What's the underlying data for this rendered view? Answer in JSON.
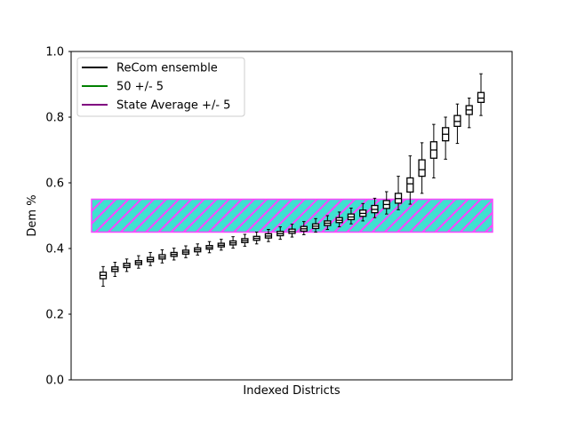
{
  "chart_data": {
    "type": "box",
    "xlabel": "Indexed Districts",
    "ylabel": "Dem %",
    "ylim": [
      0.0,
      1.0
    ],
    "yticks": [
      "0.0",
      "0.2",
      "0.4",
      "0.6",
      "0.8",
      "1.0"
    ],
    "grid": false,
    "legend": {
      "placement": "top-left",
      "entries": [
        {
          "label": "ReCom ensemble",
          "color": "#000000"
        },
        {
          "label": "50 +/- 5",
          "color": "#008000"
        },
        {
          "label": "State Average +/- 5",
          "color": "#800080"
        }
      ]
    },
    "band": {
      "ymin": 0.45,
      "ymax": 0.55,
      "edge_color": "#ff44ff",
      "fill_color": "#40e0d0",
      "hatch": "diagonal"
    },
    "series": [
      {
        "name": "ReCom ensemble",
        "color": "#000000",
        "boxes": [
          {
            "whislo": 0.285,
            "q1": 0.308,
            "med": 0.318,
            "q3": 0.328,
            "whishi": 0.345
          },
          {
            "whislo": 0.315,
            "q1": 0.33,
            "med": 0.337,
            "q3": 0.344,
            "whishi": 0.358
          },
          {
            "whislo": 0.33,
            "q1": 0.342,
            "med": 0.348,
            "q3": 0.355,
            "whishi": 0.368
          },
          {
            "whislo": 0.34,
            "q1": 0.351,
            "med": 0.357,
            "q3": 0.363,
            "whishi": 0.378
          },
          {
            "whislo": 0.348,
            "q1": 0.36,
            "med": 0.366,
            "q3": 0.373,
            "whishi": 0.388
          },
          {
            "whislo": 0.356,
            "q1": 0.368,
            "med": 0.374,
            "q3": 0.381,
            "whishi": 0.396
          },
          {
            "whislo": 0.365,
            "q1": 0.376,
            "med": 0.382,
            "q3": 0.388,
            "whishi": 0.401
          },
          {
            "whislo": 0.372,
            "q1": 0.383,
            "med": 0.389,
            "q3": 0.395,
            "whishi": 0.408
          },
          {
            "whislo": 0.38,
            "q1": 0.39,
            "med": 0.396,
            "q3": 0.402,
            "whishi": 0.414
          },
          {
            "whislo": 0.387,
            "q1": 0.398,
            "med": 0.403,
            "q3": 0.409,
            "whishi": 0.421
          },
          {
            "whislo": 0.395,
            "q1": 0.405,
            "med": 0.41,
            "q3": 0.416,
            "whishi": 0.428
          },
          {
            "whislo": 0.401,
            "q1": 0.411,
            "med": 0.417,
            "q3": 0.423,
            "whishi": 0.436
          },
          {
            "whislo": 0.407,
            "q1": 0.418,
            "med": 0.424,
            "q3": 0.43,
            "whishi": 0.443
          },
          {
            "whislo": 0.414,
            "q1": 0.425,
            "med": 0.431,
            "q3": 0.437,
            "whishi": 0.45
          },
          {
            "whislo": 0.421,
            "q1": 0.432,
            "med": 0.438,
            "q3": 0.445,
            "whishi": 0.458
          },
          {
            "whislo": 0.428,
            "q1": 0.439,
            "med": 0.445,
            "q3": 0.452,
            "whishi": 0.466
          },
          {
            "whislo": 0.435,
            "q1": 0.446,
            "med": 0.452,
            "q3": 0.459,
            "whishi": 0.474
          },
          {
            "whislo": 0.442,
            "q1": 0.453,
            "med": 0.46,
            "q3": 0.467,
            "whishi": 0.482
          },
          {
            "whislo": 0.45,
            "q1": 0.461,
            "med": 0.468,
            "q3": 0.475,
            "whishi": 0.491
          },
          {
            "whislo": 0.458,
            "q1": 0.47,
            "med": 0.477,
            "q3": 0.484,
            "whishi": 0.5
          },
          {
            "whislo": 0.466,
            "q1": 0.479,
            "med": 0.486,
            "q3": 0.494,
            "whishi": 0.511
          },
          {
            "whislo": 0.475,
            "q1": 0.488,
            "med": 0.496,
            "q3": 0.505,
            "whishi": 0.523
          },
          {
            "whislo": 0.484,
            "q1": 0.498,
            "med": 0.507,
            "q3": 0.517,
            "whishi": 0.537
          },
          {
            "whislo": 0.494,
            "q1": 0.509,
            "med": 0.519,
            "q3": 0.531,
            "whishi": 0.553
          },
          {
            "whislo": 0.505,
            "q1": 0.522,
            "med": 0.534,
            "q3": 0.546,
            "whishi": 0.573
          },
          {
            "whislo": 0.518,
            "q1": 0.538,
            "med": 0.552,
            "q3": 0.568,
            "whishi": 0.62
          },
          {
            "whislo": 0.535,
            "q1": 0.572,
            "med": 0.597,
            "q3": 0.615,
            "whishi": 0.682
          },
          {
            "whislo": 0.568,
            "q1": 0.62,
            "med": 0.64,
            "q3": 0.67,
            "whishi": 0.722
          },
          {
            "whislo": 0.615,
            "q1": 0.675,
            "med": 0.7,
            "q3": 0.725,
            "whishi": 0.778
          },
          {
            "whislo": 0.672,
            "q1": 0.728,
            "med": 0.748,
            "q3": 0.768,
            "whishi": 0.8
          },
          {
            "whislo": 0.72,
            "q1": 0.772,
            "med": 0.787,
            "q3": 0.805,
            "whishi": 0.84
          },
          {
            "whislo": 0.768,
            "q1": 0.808,
            "med": 0.822,
            "q3": 0.835,
            "whishi": 0.858
          },
          {
            "whislo": 0.805,
            "q1": 0.845,
            "med": 0.858,
            "q3": 0.875,
            "whishi": 0.932
          }
        ]
      }
    ]
  }
}
